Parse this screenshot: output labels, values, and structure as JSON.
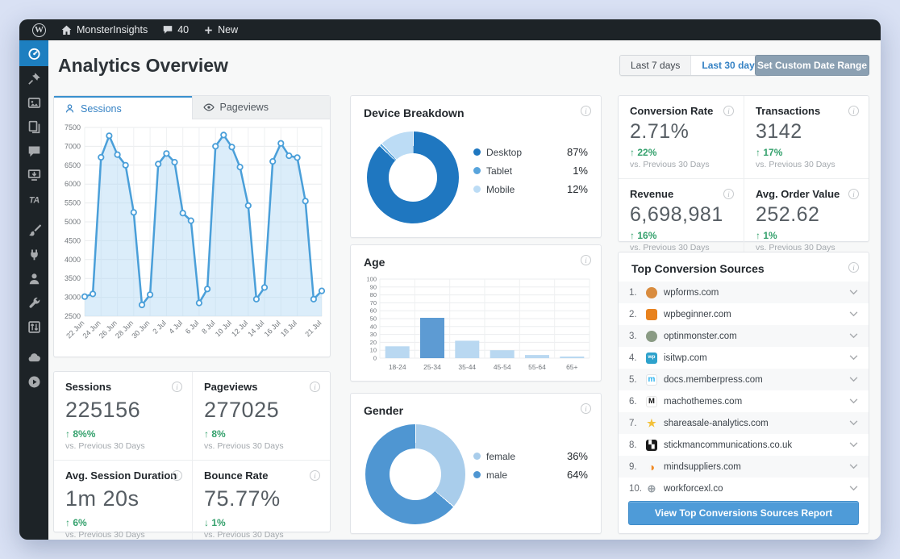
{
  "admin_bar": {
    "site_name": "MonsterInsights",
    "comments_count": "40",
    "new_label": "New"
  },
  "sidebar": {
    "items": [
      {
        "name": "dashboard",
        "icon": "gauge",
        "active": true
      },
      {
        "name": "posts",
        "icon": "pin"
      },
      {
        "name": "media",
        "icon": "media"
      },
      {
        "name": "pages",
        "icon": "pages"
      },
      {
        "name": "comments",
        "icon": "comment"
      },
      {
        "name": "downloads",
        "icon": "download"
      },
      {
        "name": "thirsty-affiliates",
        "icon": "ta"
      },
      {
        "name": "appearance",
        "icon": "brush",
        "gap": true
      },
      {
        "name": "plugins",
        "icon": "plug"
      },
      {
        "name": "users",
        "icon": "user"
      },
      {
        "name": "tools",
        "icon": "wrench"
      },
      {
        "name": "settings",
        "icon": "sliders"
      },
      {
        "name": "seo-cloud",
        "icon": "cloud",
        "gap": true
      },
      {
        "name": "video",
        "icon": "play"
      }
    ]
  },
  "header": {
    "title": "Analytics Overview",
    "range_buttons": {
      "last7": "Last 7 days",
      "last30": "Last 30 days",
      "custom": "Set Custom Date Range"
    }
  },
  "overview_tabs": {
    "sessions": "Sessions",
    "pageviews": "Pageviews"
  },
  "chart_data": [
    {
      "name": "sessions",
      "type": "line",
      "title": "Sessions",
      "x": [
        "22 Jun",
        "23 Jun",
        "24 Jun",
        "25 Jun",
        "26 Jun",
        "27 Jun",
        "28 Jun",
        "29 Jun",
        "30 Jun",
        "1 Jul",
        "2 Jul",
        "3 Jul",
        "4 Jul",
        "5 Jul",
        "6 Jul",
        "7 Jul",
        "8 Jul",
        "9 Jul",
        "10 Jul",
        "11 Jul",
        "12 Jul",
        "13 Jul",
        "14 Jul",
        "15 Jul",
        "16 Jul",
        "17 Jul",
        "18 Jul",
        "19 Jul",
        "20 Jul",
        "21 Jul"
      ],
      "values": [
        3020,
        3090,
        6710,
        7280,
        6780,
        6500,
        5250,
        2800,
        3070,
        6530,
        6810,
        6580,
        5230,
        5030,
        2850,
        3220,
        7000,
        7300,
        6980,
        6450,
        5430,
        2950,
        3260,
        6600,
        7080,
        6750,
        6700,
        5550,
        2950,
        3170
      ],
      "xticks": [
        "22 Jun",
        "24 Jun",
        "26 Jun",
        "28 Jun",
        "30 Jun",
        "2 Jul",
        "4 Jul",
        "6 Jul",
        "8 Jul",
        "10 Jul",
        "12 Jul",
        "14 Jul",
        "16 Jul",
        "18 Jul",
        "21 Jul"
      ],
      "ylim": [
        2500,
        7500
      ],
      "ystep": 500,
      "grid": true,
      "line_color": "#4a9fd9",
      "fill_color": "rgba(176,214,243,0.45)"
    },
    {
      "name": "device_breakdown",
      "type": "pie",
      "title": "Device Breakdown",
      "donut": true,
      "legend_position": "right",
      "slices": [
        {
          "label": "Desktop",
          "value": 87,
          "pct": "87%",
          "color": "#1f77c0"
        },
        {
          "label": "Tablet",
          "value": 1,
          "pct": "1%",
          "color": "#58a4dc"
        },
        {
          "label": "Mobile",
          "value": 12,
          "pct": "12%",
          "color": "#bcdcf5"
        }
      ]
    },
    {
      "name": "age",
      "type": "bar",
      "title": "Age",
      "categories": [
        "18-24",
        "25-34",
        "35-44",
        "45-54",
        "55-64",
        "65+"
      ],
      "values": [
        15,
        51,
        22,
        10,
        4,
        2
      ],
      "ylim": [
        0,
        100
      ],
      "ystep": 10,
      "bar_color": "#b9d8f1",
      "highlight_index": 1,
      "highlight_color": "#5d9bd3"
    },
    {
      "name": "gender",
      "type": "pie",
      "title": "Gender",
      "donut": true,
      "legend_position": "right",
      "slices": [
        {
          "label": "female",
          "value": 36,
          "pct": "36%",
          "color": "#a9cdeb"
        },
        {
          "label": "male",
          "value": 64,
          "pct": "64%",
          "color": "#4f96d2"
        }
      ]
    }
  ],
  "kpis_left": [
    {
      "title": "Sessions",
      "value": "225156",
      "arrow": "↑",
      "delta": "8%%",
      "caption": "vs. Previous 30 Days"
    },
    {
      "title": "Pageviews",
      "value": "277025",
      "arrow": "↑",
      "delta": "8%",
      "caption": "vs. Previous 30 Days"
    },
    {
      "title": "Avg. Session Duration",
      "value": "1m 20s",
      "arrow": "↑",
      "delta": "6%",
      "caption": "vs. Previous 30 Days"
    },
    {
      "title": "Bounce Rate",
      "value": "75.77%",
      "arrow": "↓",
      "delta": "1%",
      "caption": "vs. Previous 30 Days"
    }
  ],
  "kpis_right": [
    {
      "title": "Conversion Rate",
      "value": "2.71%",
      "arrow": "↑",
      "delta": "22%",
      "caption": "vs. Previous 30 Days"
    },
    {
      "title": "Transactions",
      "value": "3142",
      "arrow": "↑",
      "delta": "17%",
      "caption": "vs. Previous 30 Days"
    },
    {
      "title": "Revenue",
      "value": "6,698,981",
      "arrow": "↑",
      "delta": "16%",
      "caption": "vs. Previous 30 Days"
    },
    {
      "title": "Avg. Order Value",
      "value": "252.62",
      "arrow": "↑",
      "delta": "1%",
      "caption": "vs. Previous 30 Days"
    }
  ],
  "top_sources": {
    "title": "Top Conversion Sources",
    "button_label": "View Top Conversions Sources Report",
    "items": [
      {
        "rank": "1.",
        "domain": "wpforms.com",
        "icon": {
          "shape": "circle",
          "bg": "#d98c3f",
          "fg": "#8a4d17",
          "glyph": ""
        }
      },
      {
        "rank": "2.",
        "domain": "wpbeginner.com",
        "icon": {
          "shape": "square",
          "bg": "#e8821e",
          "fg": "#ffffff",
          "glyph": ""
        }
      },
      {
        "rank": "3.",
        "domain": "optinmonster.com",
        "icon": {
          "shape": "circle",
          "bg": "#8a9b84",
          "fg": "#3d4a38",
          "glyph": ""
        }
      },
      {
        "rank": "4.",
        "domain": "isitwp.com",
        "icon": {
          "shape": "square",
          "bg": "#2ea2cc",
          "fg": "#ffffff",
          "glyph": "wp",
          "fs": "6.5"
        }
      },
      {
        "rank": "5.",
        "domain": "docs.memberpress.com",
        "icon": {
          "shape": "square",
          "bg": "#ffffff",
          "fg": "#2bb3f0",
          "glyph": "m",
          "fs": "10",
          "border": "#dfe3e6"
        }
      },
      {
        "rank": "6.",
        "domain": "machothemes.com",
        "icon": {
          "shape": "square",
          "bg": "#ffffff",
          "fg": "#111111",
          "glyph": "M",
          "fs": "9.5",
          "border": "#e6e6e6"
        }
      },
      {
        "rank": "7.",
        "domain": "shareasale-analytics.com",
        "icon": {
          "shape": "none",
          "bg": "transparent",
          "fg": "#f3c13a",
          "glyph": "★",
          "fs": "13"
        }
      },
      {
        "rank": "8.",
        "domain": "stickmancommunications.co.uk",
        "icon": {
          "shape": "square",
          "bg": "#1b1b1b",
          "fg": "#ffffff",
          "glyph": "▚",
          "fs": "9"
        }
      },
      {
        "rank": "9.",
        "domain": "mindsuppliers.com",
        "icon": {
          "shape": "none",
          "bg": "transparent",
          "fg": "#f08a24",
          "glyph": "◑",
          "fs": "14"
        }
      },
      {
        "rank": "10.",
        "domain": "workforcexl.co",
        "icon": {
          "shape": "none",
          "bg": "transparent",
          "fg": "#98a0a6",
          "glyph": "⊕",
          "fs": "13"
        }
      }
    ]
  },
  "colors": {
    "accent_blue": "#1d7fc0",
    "link_blue": "#3582c4",
    "positive_green": "#35a16d",
    "admin_dark": "#1d2327",
    "button_blue": "#4e9bd8"
  }
}
